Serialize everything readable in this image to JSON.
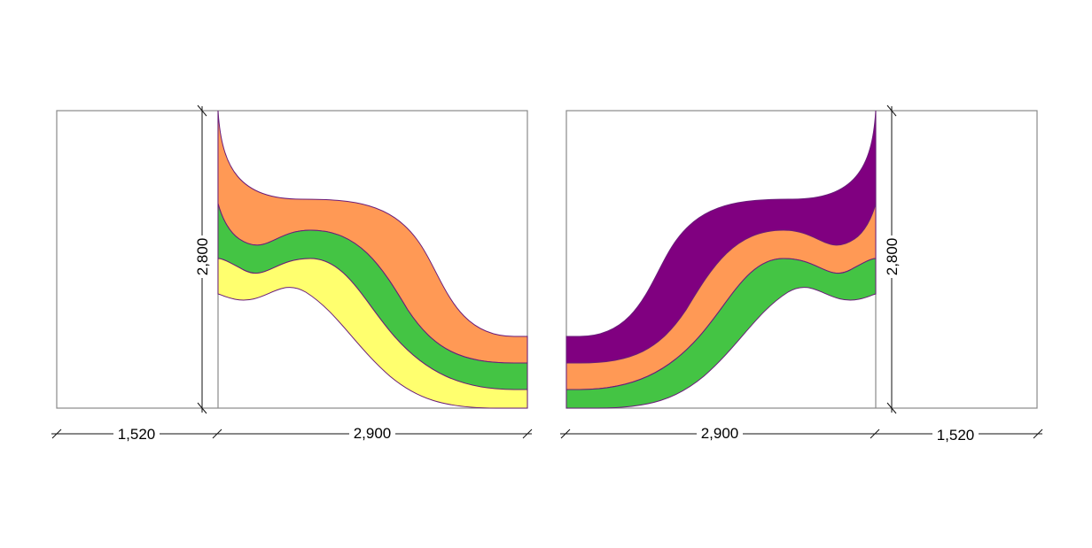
{
  "colors": {
    "purple": "#800080",
    "orange": "#FF9955",
    "green": "#44C444",
    "yellow": "#FFFF6E",
    "outline": "#6A1B7A",
    "frame": "#8A8A8A"
  },
  "left_drawing": {
    "dim_side_width": "1,520",
    "dim_main_width": "2,900",
    "dim_height": "2,800",
    "bands": [
      "orange",
      "green",
      "yellow"
    ]
  },
  "right_drawing": {
    "dim_main_width": "2,900",
    "dim_side_width": "1,520",
    "dim_height": "2,800",
    "bands": [
      "purple",
      "orange",
      "green"
    ]
  }
}
